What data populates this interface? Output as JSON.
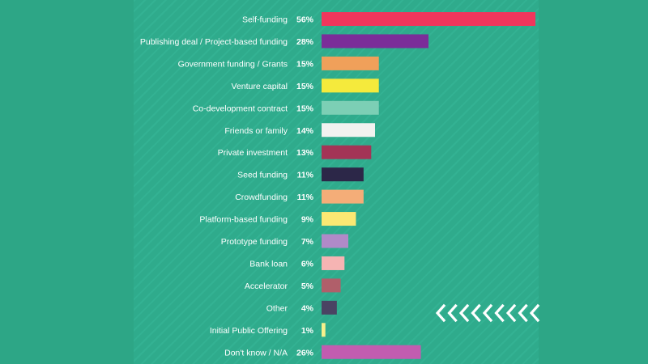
{
  "colors": {
    "background": "#2fa98a",
    "text": "#ffffff",
    "accent_icon": "#ffffff"
  },
  "decoration": {
    "icon": "chevron-left-arrows-icon",
    "count": 9
  },
  "chart_data": {
    "type": "bar",
    "orientation": "horizontal",
    "title": "",
    "xlabel": "",
    "ylabel": "",
    "xlim": [
      0,
      56
    ],
    "grid": false,
    "legend": "none",
    "categories": [
      "Self-funding",
      "Publishing deal / Project-based funding",
      "Government funding / Grants",
      "Venture capital",
      "Co-development contract",
      "Friends or family",
      "Private investment",
      "Seed funding",
      "Crowdfunding",
      "Platform-based funding",
      "Prototype funding",
      "Bank loan",
      "Accelerator",
      "Other",
      "Initial Public Offering",
      "Don't know / N/A"
    ],
    "values": [
      56,
      28,
      15,
      15,
      15,
      14,
      13,
      11,
      11,
      9,
      7,
      6,
      5,
      4,
      1,
      26
    ],
    "value_labels": [
      "56%",
      "28%",
      "15%",
      "15%",
      "15%",
      "14%",
      "13%",
      "11%",
      "11%",
      "9%",
      "7%",
      "6%",
      "5%",
      "4%",
      "1%",
      "26%"
    ],
    "bar_colors": [
      "#f0365c",
      "#7b2d99",
      "#f0a05a",
      "#f5ea3c",
      "#7ccfb5",
      "#f2f2f0",
      "#a33456",
      "#2c2748",
      "#f4ad78",
      "#fbe873",
      "#b08ac8",
      "#f6b4b3",
      "#b05f6a",
      "#4a4363",
      "#f8f08c",
      "#c25cb0"
    ]
  }
}
